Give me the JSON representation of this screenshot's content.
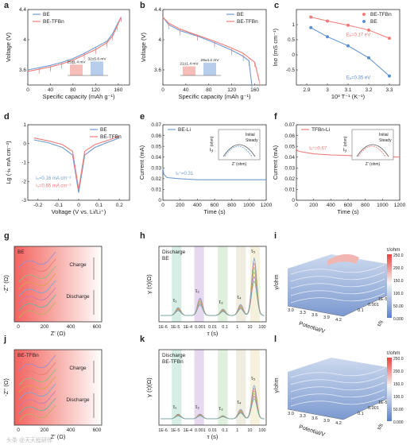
{
  "panel_letters": [
    "a",
    "b",
    "c",
    "d",
    "e",
    "f",
    "g",
    "h",
    "i",
    "j",
    "k",
    "l"
  ],
  "chart_data": [
    {
      "panel": "a",
      "type": "line",
      "xlabel": "Specific capacity (mAh g⁻¹)",
      "ylabel": "Voltage (V)",
      "xlim": [
        0,
        180
      ],
      "ylim": [
        3.4,
        4.4
      ],
      "xticks": [
        0,
        40,
        80,
        120,
        160
      ],
      "yticks": [
        3.6,
        4.0,
        4.4
      ],
      "legend": [
        "BE",
        "BE-TFBn"
      ],
      "legend_position": "top-left",
      "series": [
        {
          "name": "BE",
          "color": "#6f9bd0",
          "x": [
            0,
            20,
            40,
            60,
            80,
            100,
            120,
            140,
            150,
            158,
            165
          ],
          "y": [
            3.6,
            3.63,
            3.66,
            3.7,
            3.75,
            3.82,
            3.9,
            3.98,
            4.08,
            4.2,
            4.3
          ]
        },
        {
          "name": "BE-TFBn",
          "color": "#ef7b77",
          "x": [
            0,
            20,
            40,
            60,
            80,
            100,
            120,
            140,
            150,
            158,
            165
          ],
          "y": [
            3.58,
            3.61,
            3.64,
            3.68,
            3.73,
            3.8,
            3.87,
            3.96,
            4.05,
            4.18,
            4.3
          ]
        }
      ],
      "inset": {
        "type": "bar",
        "labels": [
          "25±1.4 mV",
          "32±5.6 mV"
        ],
        "values": [
          25,
          32
        ]
      }
    },
    {
      "panel": "b",
      "type": "line",
      "xlabel": "Specific capacity (mAh g⁻¹)",
      "ylabel": "Voltage (V)",
      "xlim": [
        0,
        180
      ],
      "ylim": [
        3.4,
        4.4
      ],
      "xticks": [
        0,
        40,
        80,
        120,
        160
      ],
      "yticks": [
        3.6,
        4.0,
        4.4
      ],
      "legend": [
        "BE",
        "BE-TFBn"
      ],
      "legend_position": "top-right",
      "series": [
        {
          "name": "BE",
          "color": "#6f9bd0",
          "x": [
            0,
            10,
            30,
            60,
            90,
            120,
            140,
            150,
            155
          ],
          "y": [
            4.3,
            4.2,
            4.12,
            4.05,
            3.96,
            3.86,
            3.78,
            3.72,
            3.4
          ]
        },
        {
          "name": "BE-TFBn",
          "color": "#ef7b77",
          "x": [
            0,
            10,
            30,
            60,
            90,
            120,
            140,
            160,
            168
          ],
          "y": [
            4.3,
            4.22,
            4.14,
            4.06,
            3.98,
            3.89,
            3.82,
            3.7,
            3.45
          ]
        }
      ],
      "inset": {
        "type": "bar",
        "labels": [
          "21±1.4 mV",
          "29±4.2 mV"
        ],
        "values": [
          21,
          29
        ]
      }
    },
    {
      "panel": "c",
      "type": "scatter",
      "xlabel": "10³ T⁻¹ (K⁻¹)",
      "ylabel": "lnσ (mS cm⁻¹)",
      "xlim": [
        2.85,
        3.35
      ],
      "ylim": [
        -1.0,
        1.5
      ],
      "xticks": [
        2.9,
        3.0,
        3.1,
        3.2,
        3.3
      ],
      "yticks": [
        -0.5,
        0.0,
        0.5,
        1.0
      ],
      "legend": [
        "BE-TFBn",
        "BE"
      ],
      "legend_position": "top-right",
      "series": [
        {
          "name": "BE-TFBn",
          "color": "#ef7b77",
          "x": [
            2.92,
            3.0,
            3.1,
            3.2,
            3.3
          ],
          "y": [
            1.25,
            1.12,
            0.98,
            0.82,
            0.55
          ]
        },
        {
          "name": "BE",
          "color": "#5b8fd0",
          "x": [
            2.92,
            3.0,
            3.1,
            3.2,
            3.3
          ],
          "y": [
            0.9,
            0.6,
            0.3,
            -0.1,
            -0.7
          ]
        }
      ],
      "annotations": [
        "Eₐ=0.17 eV",
        "Eₐ=0.35 eV"
      ]
    },
    {
      "panel": "d",
      "type": "line",
      "xlabel": "Voltage (V vs. Li/Li⁺)",
      "ylabel": "Lg (-iₖ mA cm⁻²)",
      "xlim": [
        -0.25,
        0.25
      ],
      "ylim": [
        -3,
        1
      ],
      "xticks": [
        -0.2,
        -0.1,
        0.0,
        0.1,
        0.2
      ],
      "yticks": [
        -3,
        -2,
        -1,
        0,
        1
      ],
      "legend": [
        "BE",
        "BE-TFBn"
      ],
      "legend_position": "top-right",
      "series": [
        {
          "name": "BE",
          "color": "#6f9bd0",
          "x": [
            -0.22,
            -0.15,
            -0.08,
            -0.03,
            0,
            0.03,
            0.08,
            0.15,
            0.2
          ],
          "y": [
            0.2,
            0.05,
            -0.2,
            -0.6,
            -2.6,
            -0.6,
            -0.2,
            0.1,
            0.3
          ]
        },
        {
          "name": "BE-TFBn",
          "color": "#ef7b77",
          "x": [
            -0.22,
            -0.15,
            -0.08,
            -0.03,
            0,
            0.03,
            0.08,
            0.15,
            0.2
          ],
          "y": [
            0.3,
            0.15,
            -0.05,
            -0.4,
            -2.4,
            -0.4,
            -0.05,
            0.2,
            0.4
          ]
        }
      ],
      "annotations": [
        "i₀=0.16 mA cm⁻²",
        "i₀=0.65 mA cm⁻²"
      ]
    },
    {
      "panel": "e",
      "type": "line",
      "xlabel": "Time (s)",
      "ylabel": "Current (mA)",
      "xlim": [
        0,
        1200
      ],
      "ylim": [
        0.0,
        0.07
      ],
      "xticks": [
        0,
        200,
        400,
        600,
        800,
        1000,
        1200
      ],
      "yticks": [
        0.0,
        0.01,
        0.02,
        0.03,
        0.04,
        0.05,
        0.06,
        0.07
      ],
      "legend": [
        "BE-Li"
      ],
      "legend_position": "top-left",
      "series": [
        {
          "name": "BE-Li",
          "color": "#6f9bd0",
          "x": [
            0,
            10,
            50,
            200,
            400,
            800,
            1200
          ],
          "y": [
            0.03,
            0.024,
            0.021,
            0.02,
            0.019,
            0.019,
            0.019
          ]
        }
      ],
      "annotations": [
        "tₗᵢ⁺=0.31"
      ],
      "inset": {
        "xlabel": "Z' (ohm)",
        "ylabel": "-Z'' (ohm)",
        "xticks": [
          0,
          100,
          200,
          300,
          400,
          500
        ],
        "yticks": [
          0,
          100,
          200
        ],
        "legend": [
          "Initial",
          "Steady"
        ]
      }
    },
    {
      "panel": "f",
      "type": "line",
      "xlabel": "Time (s)",
      "ylabel": "Current (mA)",
      "xlim": [
        0,
        1200
      ],
      "ylim": [
        0.0,
        0.07
      ],
      "xticks": [
        0,
        200,
        400,
        600,
        800,
        1000,
        1200
      ],
      "yticks": [
        0.0,
        0.01,
        0.02,
        0.03,
        0.04,
        0.05,
        0.06,
        0.07
      ],
      "legend": [
        "TFBn-Li"
      ],
      "legend_position": "top-left",
      "series": [
        {
          "name": "TFBn-Li",
          "color": "#ef7b77",
          "x": [
            0,
            10,
            50,
            200,
            400,
            800,
            1200
          ],
          "y": [
            0.048,
            0.046,
            0.045,
            0.043,
            0.042,
            0.041,
            0.04
          ]
        }
      ],
      "annotations": [
        "tₗᵢ⁺=0.67"
      ],
      "inset": {
        "xlabel": "Z' (ohm)",
        "ylabel": "-Z'' (ohm)",
        "xticks": [
          0,
          50,
          100,
          150,
          200,
          250
        ],
        "yticks": [
          0,
          50,
          100,
          150
        ],
        "legend": [
          "Initial",
          "Steady"
        ]
      }
    },
    {
      "panel": "g",
      "type": "line",
      "label": "BE",
      "xlabel": "Z' (Ω)",
      "ylabel": "-Z'' (Ω)",
      "xticks": [
        0,
        200,
        400,
        600
      ],
      "annotations": [
        "Charge",
        "Discharge"
      ]
    },
    {
      "panel": "h",
      "type": "line",
      "label": "Discharge BE",
      "xlabel": "τ (s)",
      "ylabel": "γ (τ)(Ω)",
      "xscale": "log",
      "xticks": [
        "1E-6",
        "1E-5",
        "1E-4",
        "0.001",
        "0.01",
        "0.1",
        "1",
        "10",
        "100"
      ],
      "peaks": [
        "τ₁",
        "τ₂",
        "τ₃",
        "τ₄",
        "τ₅"
      ]
    },
    {
      "panel": "i",
      "type": "heatmap",
      "surface_3d": true,
      "xlabel": "Potential/V",
      "ylabel": "τ/s",
      "zlabel": "γ/ohm",
      "xticks": [
        "3.0",
        "3.3",
        "3.6",
        "3.9",
        "4.2"
      ],
      "yticks": [
        "0.1",
        "0.001",
        "1E-5"
      ],
      "colorbar_label": "τ/ohm",
      "colorbar_ticks": [
        "250.0",
        "200.0",
        "150.0",
        "100.0",
        "50.00",
        "0.000"
      ]
    },
    {
      "panel": "j",
      "type": "line",
      "label": "BE-TFBn",
      "xlabel": "Z' (Ω)",
      "ylabel": "-Z'' (Ω)",
      "xticks": [
        0,
        200,
        400,
        600
      ],
      "annotations": [
        "Charge",
        "Discharge"
      ]
    },
    {
      "panel": "k",
      "type": "line",
      "label": "Discharge BE-TFBn",
      "xlabel": "τ (s)",
      "ylabel": "γ (τ)(Ω)",
      "xscale": "log",
      "xticks": [
        "1E-6",
        "1E-5",
        "1E-4",
        "0.001",
        "0.01",
        "0.1",
        "1",
        "10",
        "100"
      ],
      "peaks": [
        "τ₁",
        "τ₂",
        "τ₃",
        "τ₄",
        "τ₅"
      ]
    },
    {
      "panel": "l",
      "type": "heatmap",
      "surface_3d": true,
      "xlabel": "Potential/V",
      "ylabel": "τ/s",
      "zlabel": "γ/ohm",
      "xticks": [
        "3.0",
        "3.3",
        "3.6",
        "3.9",
        "4.2"
      ],
      "yticks": [
        "0.1",
        "0.001",
        "1E-5"
      ],
      "colorbar_label": "τ/ohm",
      "colorbar_ticks": [
        "250.0",
        "200.0",
        "150.0",
        "100.0",
        "50.00",
        "0.000"
      ]
    }
  ],
  "watermark": "头条 @天天程研师"
}
